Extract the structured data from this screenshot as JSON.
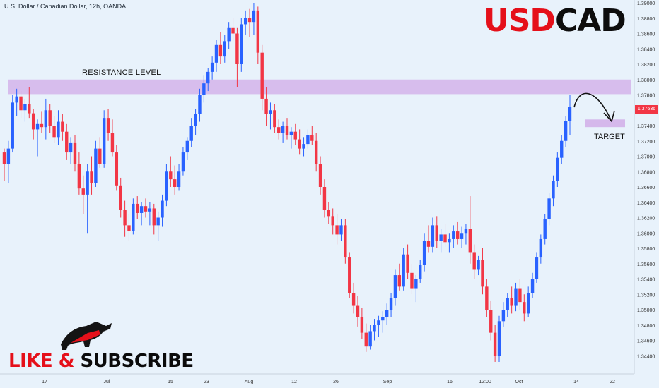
{
  "header": {
    "title": "U.S. Dollar / Canadian Dollar, 12h, OANDA"
  },
  "brand": {
    "part1": "USD",
    "part2": "CAD"
  },
  "annotations": {
    "resistance": "RESISTANCE LEVEL",
    "target": "TARGET"
  },
  "price_tag": "1.37636",
  "promo": {
    "part1": "LIKE & ",
    "part2": "SUBSCRIBE"
  },
  "colors": {
    "up": "#2962ff",
    "down": "#f23645",
    "zone": "#d4b4ea",
    "background": "#e8f2fb",
    "brand_red": "#e5101a"
  },
  "chart_data": {
    "type": "candlestick",
    "y_axis": {
      "range": [
        1.342,
        1.39
      ],
      "ticks": [
        "1.39000",
        "1.38800",
        "1.38600",
        "1.38400",
        "1.38200",
        "1.38000",
        "1.37800",
        "1.37600",
        "1.37400",
        "1.37200",
        "1.37000",
        "1.36800",
        "1.36600",
        "1.36400",
        "1.36200",
        "1.36000",
        "1.35800",
        "1.35600",
        "1.35400",
        "1.35200",
        "1.35000",
        "1.34800",
        "1.34600",
        "1.34400"
      ]
    },
    "x_axis": {
      "ticks": [
        "17",
        "Jul",
        "15",
        "23",
        "Aug",
        "12",
        "26",
        "Sep",
        "16",
        "12:00",
        "Oct",
        "14",
        "22"
      ]
    },
    "resistance_zone": [
      1.3781,
      1.38
    ],
    "target_zone": [
      1.3738,
      1.3748
    ],
    "last_price": 1.37636,
    "ohlc": [
      [
        1.3705,
        1.371,
        1.3668,
        1.369
      ],
      [
        1.369,
        1.372,
        1.3665,
        1.371
      ],
      [
        1.371,
        1.378,
        1.3705,
        1.377
      ],
      [
        1.377,
        1.3788,
        1.3752,
        1.3778
      ],
      [
        1.3778,
        1.3785,
        1.375,
        1.376
      ],
      [
        1.376,
        1.3775,
        1.3745,
        1.3768
      ],
      [
        1.3768,
        1.379,
        1.375,
        1.3756
      ],
      [
        1.3756,
        1.3762,
        1.3722,
        1.3735
      ],
      [
        1.3735,
        1.3748,
        1.37,
        1.3742
      ],
      [
        1.3742,
        1.3758,
        1.373,
        1.3738
      ],
      [
        1.3738,
        1.3775,
        1.3722,
        1.376
      ],
      [
        1.376,
        1.3768,
        1.373,
        1.374
      ],
      [
        1.374,
        1.3752,
        1.3718,
        1.3725
      ],
      [
        1.3725,
        1.376,
        1.3715,
        1.3745
      ],
      [
        1.3745,
        1.3755,
        1.372,
        1.3732
      ],
      [
        1.3732,
        1.3742,
        1.3695,
        1.3705
      ],
      [
        1.3705,
        1.3725,
        1.369,
        1.3718
      ],
      [
        1.3718,
        1.3728,
        1.368,
        1.369
      ],
      [
        1.369,
        1.3705,
        1.365,
        1.3658
      ],
      [
        1.3658,
        1.3675,
        1.3625,
        1.365
      ],
      [
        1.365,
        1.369,
        1.36,
        1.368
      ],
      [
        1.368,
        1.37,
        1.365,
        1.3665
      ],
      [
        1.3665,
        1.372,
        1.366,
        1.371
      ],
      [
        1.371,
        1.3725,
        1.3685,
        1.369
      ],
      [
        1.369,
        1.376,
        1.3685,
        1.375
      ],
      [
        1.375,
        1.3762,
        1.372,
        1.373
      ],
      [
        1.373,
        1.3748,
        1.37,
        1.3705
      ],
      [
        1.3705,
        1.3715,
        1.3655,
        1.3662
      ],
      [
        1.3662,
        1.3672,
        1.362,
        1.363
      ],
      [
        1.363,
        1.3642,
        1.3595,
        1.361
      ],
      [
        1.361,
        1.3625,
        1.359,
        1.3603
      ],
      [
        1.3603,
        1.3645,
        1.3598,
        1.3638
      ],
      [
        1.3638,
        1.3648,
        1.3618,
        1.3626
      ],
      [
        1.3626,
        1.364,
        1.361,
        1.3635
      ],
      [
        1.3635,
        1.3645,
        1.362,
        1.3628
      ],
      [
        1.3628,
        1.364,
        1.361,
        1.3632
      ],
      [
        1.3632,
        1.3638,
        1.3598,
        1.361
      ],
      [
        1.361,
        1.3628,
        1.359,
        1.362
      ],
      [
        1.362,
        1.365,
        1.3608,
        1.3642
      ],
      [
        1.3642,
        1.369,
        1.3635,
        1.368
      ],
      [
        1.368,
        1.37,
        1.366,
        1.367
      ],
      [
        1.367,
        1.3688,
        1.365,
        1.366
      ],
      [
        1.366,
        1.369,
        1.3655,
        1.368
      ],
      [
        1.368,
        1.3712,
        1.3675,
        1.3705
      ],
      [
        1.3705,
        1.3725,
        1.3695,
        1.372
      ],
      [
        1.372,
        1.375,
        1.3712,
        1.374
      ],
      [
        1.374,
        1.3762,
        1.3728,
        1.3755
      ],
      [
        1.3755,
        1.3788,
        1.3745,
        1.378
      ],
      [
        1.378,
        1.3805,
        1.377,
        1.3795
      ],
      [
        1.3795,
        1.3815,
        1.3785,
        1.381
      ],
      [
        1.381,
        1.383,
        1.38,
        1.3822
      ],
      [
        1.3822,
        1.3852,
        1.381,
        1.3845
      ],
      [
        1.3845,
        1.3862,
        1.382,
        1.383
      ],
      [
        1.383,
        1.3858,
        1.3822,
        1.385
      ],
      [
        1.385,
        1.3875,
        1.384,
        1.3868
      ],
      [
        1.3868,
        1.388,
        1.385,
        1.386
      ],
      [
        1.386,
        1.3868,
        1.379,
        1.382
      ],
      [
        1.382,
        1.388,
        1.381,
        1.3872
      ],
      [
        1.3872,
        1.389,
        1.3858,
        1.388
      ],
      [
        1.388,
        1.3892,
        1.3855,
        1.3875
      ],
      [
        1.3875,
        1.39,
        1.3858,
        1.389
      ],
      [
        1.389,
        1.3895,
        1.382,
        1.3835
      ],
      [
        1.3835,
        1.3845,
        1.376,
        1.3775
      ],
      [
        1.3775,
        1.379,
        1.374,
        1.3755
      ],
      [
        1.3755,
        1.377,
        1.3735,
        1.376
      ],
      [
        1.376,
        1.3768,
        1.373,
        1.3738
      ],
      [
        1.3738,
        1.3748,
        1.3722,
        1.373
      ],
      [
        1.373,
        1.3745,
        1.3718,
        1.374
      ],
      [
        1.374,
        1.375,
        1.3722,
        1.3728
      ],
      [
        1.3728,
        1.3738,
        1.371,
        1.3732
      ],
      [
        1.3732,
        1.3742,
        1.3715,
        1.3722
      ],
      [
        1.3722,
        1.3735,
        1.3702,
        1.371
      ],
      [
        1.371,
        1.3725,
        1.37,
        1.3716
      ],
      [
        1.3716,
        1.3735,
        1.371,
        1.3728
      ],
      [
        1.3728,
        1.374,
        1.3715,
        1.372
      ],
      [
        1.372,
        1.373,
        1.368,
        1.369
      ],
      [
        1.369,
        1.37,
        1.365,
        1.366
      ],
      [
        1.366,
        1.367,
        1.362,
        1.363
      ],
      [
        1.363,
        1.364,
        1.3612,
        1.3622
      ],
      [
        1.3622,
        1.3632,
        1.3598,
        1.361
      ],
      [
        1.361,
        1.3625,
        1.3585,
        1.3598
      ],
      [
        1.3598,
        1.3618,
        1.359,
        1.361
      ],
      [
        1.361,
        1.3618,
        1.356,
        1.3568
      ],
      [
        1.3568,
        1.3575,
        1.3515,
        1.3522
      ],
      [
        1.3522,
        1.3535,
        1.3495,
        1.3505
      ],
      [
        1.3505,
        1.3518,
        1.3478,
        1.349
      ],
      [
        1.349,
        1.3502,
        1.3462,
        1.347
      ],
      [
        1.347,
        1.3482,
        1.3445,
        1.3452
      ],
      [
        1.3452,
        1.348,
        1.3448,
        1.3472
      ],
      [
        1.3472,
        1.3488,
        1.346,
        1.348
      ],
      [
        1.348,
        1.3492,
        1.3465,
        1.3486
      ],
      [
        1.3486,
        1.3498,
        1.347,
        1.349
      ],
      [
        1.349,
        1.3508,
        1.348,
        1.35
      ],
      [
        1.35,
        1.3522,
        1.349,
        1.3515
      ],
      [
        1.3515,
        1.3552,
        1.3505,
        1.3545
      ],
      [
        1.3545,
        1.356,
        1.3525,
        1.353
      ],
      [
        1.353,
        1.358,
        1.3525,
        1.3572
      ],
      [
        1.3572,
        1.3585,
        1.354,
        1.3548
      ],
      [
        1.3548,
        1.356,
        1.352,
        1.3528
      ],
      [
        1.3528,
        1.3545,
        1.351,
        1.354
      ],
      [
        1.354,
        1.3565,
        1.3535,
        1.3558
      ],
      [
        1.3558,
        1.36,
        1.355,
        1.359
      ],
      [
        1.359,
        1.361,
        1.3575,
        1.3582
      ],
      [
        1.3582,
        1.362,
        1.3575,
        1.361
      ],
      [
        1.361,
        1.3622,
        1.358,
        1.359
      ],
      [
        1.359,
        1.3605,
        1.3575,
        1.3598
      ],
      [
        1.3598,
        1.3612,
        1.3582,
        1.3588
      ],
      [
        1.3588,
        1.36,
        1.3575,
        1.3592
      ],
      [
        1.3592,
        1.361,
        1.358,
        1.3602
      ],
      [
        1.3602,
        1.3615,
        1.3585,
        1.3592
      ],
      [
        1.3592,
        1.3608,
        1.358,
        1.36
      ],
      [
        1.36,
        1.3612,
        1.3585,
        1.3605
      ],
      [
        1.3605,
        1.3648,
        1.356,
        1.3575
      ],
      [
        1.3575,
        1.3585,
        1.354,
        1.3552
      ],
      [
        1.3552,
        1.357,
        1.3545,
        1.3565
      ],
      [
        1.3565,
        1.358,
        1.352,
        1.353
      ],
      [
        1.353,
        1.354,
        1.349,
        1.35
      ],
      [
        1.35,
        1.3512,
        1.346,
        1.347
      ],
      [
        1.347,
        1.348,
        1.3432,
        1.344
      ],
      [
        1.344,
        1.3492,
        1.3432,
        1.3485
      ],
      [
        1.3485,
        1.351,
        1.3478,
        1.35
      ],
      [
        1.35,
        1.3522,
        1.349,
        1.3515
      ],
      [
        1.3515,
        1.353,
        1.3495,
        1.3505
      ],
      [
        1.3505,
        1.3535,
        1.3498,
        1.3528
      ],
      [
        1.3528,
        1.354,
        1.35,
        1.351
      ],
      [
        1.351,
        1.352,
        1.3485,
        1.3495
      ],
      [
        1.3495,
        1.353,
        1.349,
        1.3522
      ],
      [
        1.3522,
        1.3548,
        1.3515,
        1.354
      ],
      [
        1.354,
        1.3575,
        1.3535,
        1.3568
      ],
      [
        1.3568,
        1.3598,
        1.356,
        1.3592
      ],
      [
        1.3592,
        1.3625,
        1.3585,
        1.3618
      ],
      [
        1.3618,
        1.3652,
        1.361,
        1.3645
      ],
      [
        1.3645,
        1.3675,
        1.3635,
        1.3668
      ],
      [
        1.3668,
        1.3705,
        1.366,
        1.3698
      ],
      [
        1.3698,
        1.3728,
        1.369,
        1.372
      ],
      [
        1.372,
        1.3752,
        1.3712,
        1.3746
      ],
      [
        1.3746,
        1.378,
        1.3728,
        1.3764
      ]
    ]
  }
}
